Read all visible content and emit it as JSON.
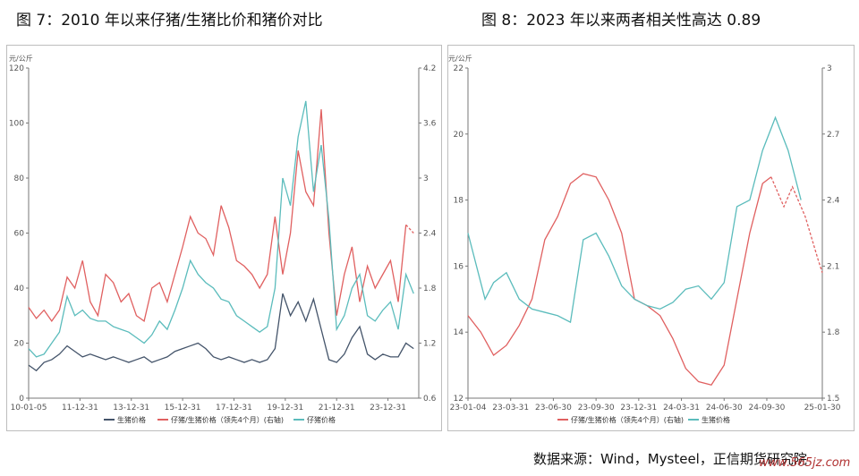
{
  "titles": {
    "left": "图 7：2010 年以来仔猪/生猪比价和猪价对比",
    "right": "图 8：2023 年以来两者相关性高达 0.89"
  },
  "source": "数据来源：Wind，Mysteel，正信期货研究院",
  "watermark": "www.565jz.com",
  "chart_data": [
    {
      "type": "line",
      "left_unit": "元/公斤",
      "left_axis": {
        "min": 0,
        "max": 120,
        "ticks": [
          0,
          20,
          40,
          60,
          80,
          100,
          120
        ]
      },
      "right_axis": {
        "min": 0.6,
        "max": 4.2,
        "ticks": [
          "0.6",
          "1.2",
          "1.8",
          "2.4",
          "3",
          "3.6",
          "4.2"
        ]
      },
      "x_ticks": [
        "10-01-05",
        "11-12-31",
        "13-12-31",
        "15-12-31",
        "17-12-31",
        "19-12-31",
        "21-12-31",
        "23-12-31"
      ],
      "x_tick_pos": [
        0,
        2,
        4,
        6,
        8,
        10,
        12,
        14
      ],
      "x_range": [
        0,
        15.2
      ],
      "series": [
        {
          "name": "生猪价格",
          "axis": "left",
          "color": "#44546a",
          "points": [
            [
              0,
              12
            ],
            [
              0.3,
              10
            ],
            [
              0.6,
              13
            ],
            [
              0.9,
              14
            ],
            [
              1.2,
              16
            ],
            [
              1.5,
              19
            ],
            [
              1.8,
              17
            ],
            [
              2.1,
              15
            ],
            [
              2.4,
              16
            ],
            [
              2.7,
              15
            ],
            [
              3,
              14
            ],
            [
              3.3,
              15
            ],
            [
              3.6,
              14
            ],
            [
              3.9,
              13
            ],
            [
              4.2,
              14
            ],
            [
              4.5,
              15
            ],
            [
              4.8,
              13
            ],
            [
              5.1,
              14
            ],
            [
              5.4,
              15
            ],
            [
              5.7,
              17
            ],
            [
              6,
              18
            ],
            [
              6.3,
              19
            ],
            [
              6.6,
              20
            ],
            [
              6.9,
              18
            ],
            [
              7.2,
              15
            ],
            [
              7.5,
              14
            ],
            [
              7.8,
              15
            ],
            [
              8.1,
              14
            ],
            [
              8.4,
              13
            ],
            [
              8.7,
              14
            ],
            [
              9,
              13
            ],
            [
              9.3,
              14
            ],
            [
              9.6,
              18
            ],
            [
              9.9,
              38
            ],
            [
              10.2,
              30
            ],
            [
              10.5,
              35
            ],
            [
              10.8,
              28
            ],
            [
              11.1,
              36
            ],
            [
              11.4,
              25
            ],
            [
              11.7,
              14
            ],
            [
              12,
              13
            ],
            [
              12.3,
              16
            ],
            [
              12.6,
              22
            ],
            [
              12.9,
              26
            ],
            [
              13.2,
              16
            ],
            [
              13.5,
              14
            ],
            [
              13.8,
              16
            ],
            [
              14.1,
              15
            ],
            [
              14.4,
              15
            ],
            [
              14.7,
              20
            ],
            [
              15,
              18
            ]
          ]
        },
        {
          "name": "仔猪/生猪价格（领先4个月）(右轴)",
          "axis": "left",
          "color": "#e06060",
          "points": [
            [
              0,
              33
            ],
            [
              0.3,
              29
            ],
            [
              0.6,
              32
            ],
            [
              0.9,
              28
            ],
            [
              1.2,
              32
            ],
            [
              1.5,
              44
            ],
            [
              1.8,
              40
            ],
            [
              2.1,
              50
            ],
            [
              2.4,
              35
            ],
            [
              2.7,
              30
            ],
            [
              3,
              45
            ],
            [
              3.3,
              42
            ],
            [
              3.6,
              35
            ],
            [
              3.9,
              38
            ],
            [
              4.2,
              30
            ],
            [
              4.5,
              28
            ],
            [
              4.8,
              40
            ],
            [
              5.1,
              42
            ],
            [
              5.4,
              35
            ],
            [
              5.7,
              45
            ],
            [
              6,
              55
            ],
            [
              6.3,
              66
            ],
            [
              6.6,
              60
            ],
            [
              6.9,
              58
            ],
            [
              7.2,
              52
            ],
            [
              7.5,
              70
            ],
            [
              7.8,
              62
            ],
            [
              8.1,
              50
            ],
            [
              8.4,
              48
            ],
            [
              8.7,
              45
            ],
            [
              9,
              40
            ],
            [
              9.3,
              45
            ],
            [
              9.6,
              66
            ],
            [
              9.9,
              45
            ],
            [
              10.2,
              60
            ],
            [
              10.5,
              90
            ],
            [
              10.8,
              75
            ],
            [
              11.1,
              70
            ],
            [
              11.4,
              105
            ],
            [
              11.7,
              60
            ],
            [
              12,
              30
            ],
            [
              12.3,
              45
            ],
            [
              12.6,
              55
            ],
            [
              12.9,
              35
            ],
            [
              13.2,
              48
            ],
            [
              13.5,
              40
            ],
            [
              13.8,
              45
            ],
            [
              14.1,
              50
            ],
            [
              14.4,
              35
            ],
            [
              14.7,
              63
            ],
            [
              15,
              60
            ]
          ]
        },
        {
          "name": "仔猪价格",
          "axis": "left",
          "color": "#5bbcbc",
          "points": [
            [
              0,
              18
            ],
            [
              0.3,
              15
            ],
            [
              0.6,
              16
            ],
            [
              0.9,
              20
            ],
            [
              1.2,
              24
            ],
            [
              1.5,
              37
            ],
            [
              1.8,
              30
            ],
            [
              2.1,
              32
            ],
            [
              2.4,
              29
            ],
            [
              2.7,
              28
            ],
            [
              3,
              28
            ],
            [
              3.3,
              26
            ],
            [
              3.6,
              25
            ],
            [
              3.9,
              24
            ],
            [
              4.2,
              22
            ],
            [
              4.5,
              20
            ],
            [
              4.8,
              23
            ],
            [
              5.1,
              28
            ],
            [
              5.4,
              25
            ],
            [
              5.7,
              32
            ],
            [
              6,
              40
            ],
            [
              6.3,
              50
            ],
            [
              6.6,
              45
            ],
            [
              6.9,
              42
            ],
            [
              7.2,
              40
            ],
            [
              7.5,
              36
            ],
            [
              7.8,
              35
            ],
            [
              8.1,
              30
            ],
            [
              8.4,
              28
            ],
            [
              8.7,
              26
            ],
            [
              9,
              24
            ],
            [
              9.3,
              26
            ],
            [
              9.6,
              40
            ],
            [
              9.9,
              80
            ],
            [
              10.2,
              70
            ],
            [
              10.5,
              95
            ],
            [
              10.8,
              108
            ],
            [
              11.1,
              75
            ],
            [
              11.4,
              92
            ],
            [
              11.7,
              65
            ],
            [
              12,
              25
            ],
            [
              12.3,
              30
            ],
            [
              12.6,
              40
            ],
            [
              12.9,
              45
            ],
            [
              13.2,
              30
            ],
            [
              13.5,
              28
            ],
            [
              13.8,
              32
            ],
            [
              14.1,
              35
            ],
            [
              14.4,
              25
            ],
            [
              14.7,
              45
            ],
            [
              15,
              38
            ]
          ]
        }
      ]
    },
    {
      "type": "line",
      "left_unit": "元/公斤",
      "left_axis": {
        "min": 12,
        "max": 22,
        "ticks": [
          12,
          14,
          16,
          18,
          20,
          22
        ]
      },
      "right_axis": {
        "min": 1.5,
        "max": 3,
        "ticks": [
          "1.5",
          "1.8",
          "2.1",
          "2.4",
          "2.7",
          "3"
        ]
      },
      "x_ticks": [
        "23-01-04",
        "23-03-31",
        "23-06-30",
        "23-09-30",
        "23-12-31",
        "24-03-31",
        "24-06-30",
        "24-09-30",
        "25-01-30"
      ],
      "x_tick_pos": [
        0,
        1,
        2,
        3,
        4,
        5,
        6,
        7,
        8.3
      ],
      "x_range": [
        0,
        8.3
      ],
      "series": [
        {
          "name": "仔猪/生猪价格（领先4个月）(右轴)",
          "axis": "left",
          "color": "#e06060",
          "points": [
            [
              0,
              14.5
            ],
            [
              0.3,
              14
            ],
            [
              0.6,
              13.3
            ],
            [
              0.9,
              13.6
            ],
            [
              1.2,
              14.2
            ],
            [
              1.5,
              15
            ],
            [
              1.8,
              16.8
            ],
            [
              2.1,
              17.5
            ],
            [
              2.4,
              18.5
            ],
            [
              2.7,
              18.8
            ],
            [
              3,
              18.7
            ],
            [
              3.3,
              18
            ],
            [
              3.6,
              17
            ],
            [
              3.9,
              15
            ],
            [
              4.2,
              14.8
            ],
            [
              4.5,
              14.5
            ],
            [
              4.8,
              13.8
            ],
            [
              5.1,
              12.9
            ],
            [
              5.4,
              12.5
            ],
            [
              5.7,
              12.4
            ],
            [
              6,
              13
            ],
            [
              6.3,
              15
            ],
            [
              6.6,
              17
            ],
            [
              6.9,
              18.5
            ],
            [
              7.1,
              18.7
            ],
            [
              7.4,
              17.8
            ],
            [
              7.6,
              18.4
            ],
            [
              7.9,
              17.5
            ],
            [
              8.2,
              16.2
            ],
            [
              8.3,
              15.8
            ]
          ]
        },
        {
          "name": "生猪价格",
          "axis": "left",
          "color": "#5bbcbc",
          "points": [
            [
              0,
              17
            ],
            [
              0.2,
              16
            ],
            [
              0.4,
              15
            ],
            [
              0.6,
              15.5
            ],
            [
              0.9,
              15.8
            ],
            [
              1.2,
              15
            ],
            [
              1.5,
              14.7
            ],
            [
              1.8,
              14.6
            ],
            [
              2.1,
              14.5
            ],
            [
              2.4,
              14.3
            ],
            [
              2.7,
              16.8
            ],
            [
              3,
              17
            ],
            [
              3.3,
              16.3
            ],
            [
              3.6,
              15.4
            ],
            [
              3.9,
              15
            ],
            [
              4.2,
              14.8
            ],
            [
              4.5,
              14.7
            ],
            [
              4.8,
              14.9
            ],
            [
              5.1,
              15.3
            ],
            [
              5.4,
              15.4
            ],
            [
              5.7,
              15
            ],
            [
              6,
              15.5
            ],
            [
              6.3,
              17.8
            ],
            [
              6.6,
              18
            ],
            [
              6.9,
              19.5
            ],
            [
              7.2,
              20.5
            ],
            [
              7.5,
              19.5
            ],
            [
              7.8,
              18
            ]
          ]
        }
      ]
    }
  ],
  "legend_left": [
    "生猪价格",
    "仔猪/生猪价格（领先4个月）(右轴)",
    "仔猪价格"
  ],
  "legend_right": [
    "仔猪/生猪价格（领先4个月）(右轴)",
    "生猪价格"
  ]
}
